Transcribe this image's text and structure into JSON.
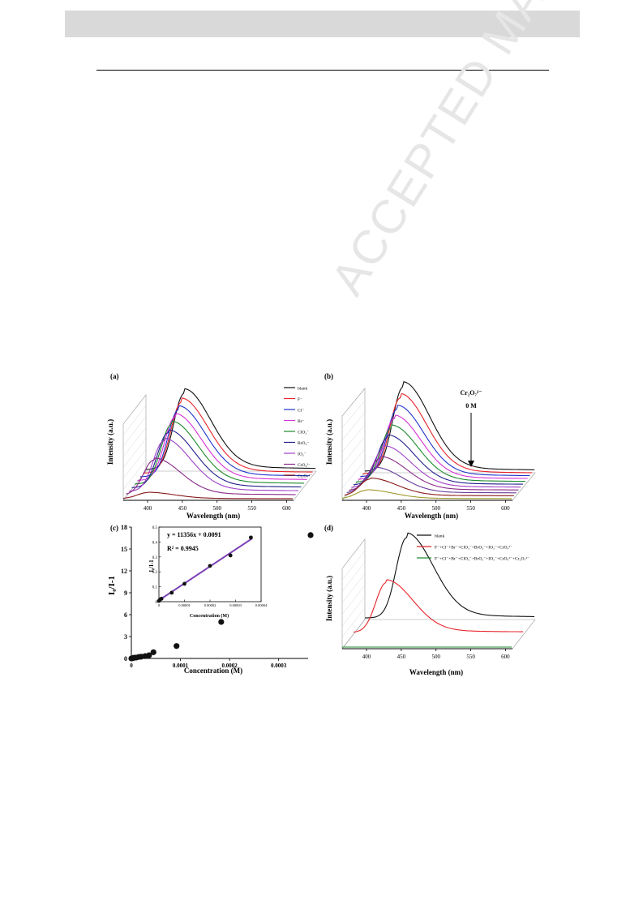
{
  "page": {
    "watermark": "ACCEPTED MANUSCRIPT"
  },
  "colors": {
    "blank": "#111111",
    "f": "#e8242a",
    "cl": "#2233cc",
    "br": "#d632d6",
    "clo3": "#1c8a2c",
    "bro3": "#221f8c",
    "io3": "#a040c8",
    "cro4": "#8a2a8a",
    "cr2o7": "#8a1a1a",
    "fit_line": "#7b3fb5"
  },
  "panels": {
    "a": {
      "label": "(a)",
      "xlabel": "Wavelength (nm)",
      "ylabel": "Intensity (a.u.)",
      "legend": [
        "blank",
        "F⁻",
        "Cl⁻",
        "Br⁻",
        "ClO₃⁻",
        "BrO₃⁻",
        "IO₃⁻",
        "CrO₄²⁻",
        "Cr₂O₇²⁻"
      ]
    },
    "b": {
      "label": "(b)",
      "xlabel": "Wavelength (nm)",
      "ylabel": "Intensity (a.u.)",
      "annotation_species": "Cr₂O₇²⁻",
      "annotation_conc": "0 M"
    },
    "c": {
      "label": "(c)",
      "xlabel": "Concentration (M)",
      "ylabel": "I₀/I-1",
      "inset_xlabel": "Concentration (M)",
      "inset_ylabel": "I₀/I-1",
      "equation": "y = 11356x + 0.0091",
      "r2": "R² = 0.9945"
    },
    "d": {
      "label": "(d)",
      "xlabel": "Wavelength (nm)",
      "ylabel": "Intensity (a.u.)",
      "legend": [
        "blank",
        "F⁻+Cl⁻+Br⁻+ClO₃⁻+BrO₃⁻+IO₃⁻+CrO₄²⁻",
        "F⁻+Cl⁻+Br⁻+ClO₃⁻+BrO₃⁻+IO₃⁻+CrO₄²⁻+Cr₂O₇²⁻"
      ]
    }
  },
  "chart_data": [
    {
      "type": "line",
      "panel": "a",
      "xlabel": "Wavelength (nm)",
      "ylabel": "Intensity (a.u.)",
      "xticks": [
        400,
        450,
        500,
        550,
        600
      ],
      "xlim": [
        365,
        610
      ],
      "series": [
        {
          "name": "blank",
          "peak_x": 420,
          "peak_rel": 1.0
        },
        {
          "name": "F⁻",
          "peak_x": 420,
          "peak_rel": 0.93
        },
        {
          "name": "Cl⁻",
          "peak_x": 420,
          "peak_rel": 0.88
        },
        {
          "name": "Br⁻",
          "peak_x": 419,
          "peak_rel": 0.83
        },
        {
          "name": "ClO₃⁻",
          "peak_x": 418,
          "peak_rel": 0.78
        },
        {
          "name": "BrO₃⁻",
          "peak_x": 417,
          "peak_rel": 0.72
        },
        {
          "name": "IO₃⁻",
          "peak_x": 415,
          "peak_rel": 0.66
        },
        {
          "name": "CrO₄²⁻",
          "peak_x": 405,
          "peak_rel": 0.46
        },
        {
          "name": "Cr₂O₇²⁻",
          "peak_x": 400,
          "peak_rel": 0.08
        }
      ]
    },
    {
      "type": "line",
      "panel": "b",
      "xlabel": "Wavelength (nm)",
      "ylabel": "Intensity (a.u.)",
      "xticks": [
        400,
        450,
        500,
        550,
        600
      ],
      "xlim": [
        365,
        610
      ],
      "series": [
        {
          "peak_x": 420,
          "peak_rel": 1.0
        },
        {
          "peak_x": 419,
          "peak_rel": 0.9
        },
        {
          "peak_x": 418,
          "peak_rel": 0.8
        },
        {
          "peak_x": 417,
          "peak_rel": 0.72
        },
        {
          "peak_x": 416,
          "peak_rel": 0.64
        },
        {
          "peak_x": 414,
          "peak_rel": 0.56
        },
        {
          "peak_x": 412,
          "peak_rel": 0.47
        },
        {
          "peak_x": 410,
          "peak_rel": 0.38
        },
        {
          "peak_x": 406,
          "peak_rel": 0.29
        },
        {
          "peak_x": 402,
          "peak_rel": 0.2
        },
        {
          "peak_x": 400,
          "peak_rel": 0.1
        }
      ]
    },
    {
      "type": "scatter",
      "panel": "c",
      "xlabel": "Concentration (M)",
      "ylabel": "I₀/I-1",
      "xlim": [
        0,
        0.00036
      ],
      "ylim": [
        0,
        18
      ],
      "xticks": [
        "0",
        "0.0001",
        "0.0002",
        "0.0003"
      ],
      "yticks": [
        0,
        3,
        6,
        9,
        12,
        15,
        18
      ],
      "x": [
        0,
        2e-06,
        4e-06,
        6e-06,
        1e-05,
        1.5e-05,
        2e-05,
        2.8e-05,
        3.6e-05,
        4.5e-05,
        9.2e-05,
        0.000183,
        0.000365
      ],
      "y": [
        0.0,
        0.02,
        0.06,
        0.1,
        0.12,
        0.2,
        0.24,
        0.32,
        0.43,
        0.85,
        1.7,
        5.0,
        16.9
      ]
    },
    {
      "type": "scatter",
      "panel": "c-inset",
      "xlabel": "Concentration (M)",
      "ylabel": "I₀/I-1",
      "xlim": [
        0,
        4e-05
      ],
      "ylim": [
        0,
        0.5
      ],
      "xticks": [
        "0",
        "0.00001",
        "0.00002",
        "0.00003",
        "0.00004"
      ],
      "yticks": [
        "0",
        "0.1",
        "0.2",
        "0.3",
        "0.4",
        "0.5"
      ],
      "x": [
        0,
        5e-07,
        1e-06,
        5e-06,
        1e-05,
        2e-05,
        2.8e-05,
        3.6e-05
      ],
      "y": [
        0.005,
        0.015,
        0.02,
        0.06,
        0.12,
        0.24,
        0.31,
        0.43
      ],
      "fit": {
        "slope": 11356,
        "intercept": 0.0091
      }
    },
    {
      "type": "line",
      "panel": "d",
      "xlabel": "Wavelength (nm)",
      "ylabel": "Intensity (a.u.)",
      "xticks": [
        400,
        450,
        500,
        550,
        600
      ],
      "xlim": [
        365,
        610
      ],
      "series": [
        {
          "name": "blank",
          "peak_x": 425,
          "peak_rel": 1.0
        },
        {
          "name": "F⁻+Cl⁻+Br⁻+ClO₃⁻+BrO₃⁻+IO₃⁻+CrO₄²⁻",
          "peak_x": 412,
          "peak_rel": 0.62
        },
        {
          "name": "F⁻+Cl⁻+Br⁻+ClO₃⁻+BrO₃⁻+IO₃⁻+CrO₄²⁻+Cr₂O₇²⁻",
          "peak_x": 410,
          "peak_rel": 0.0
        }
      ]
    }
  ]
}
